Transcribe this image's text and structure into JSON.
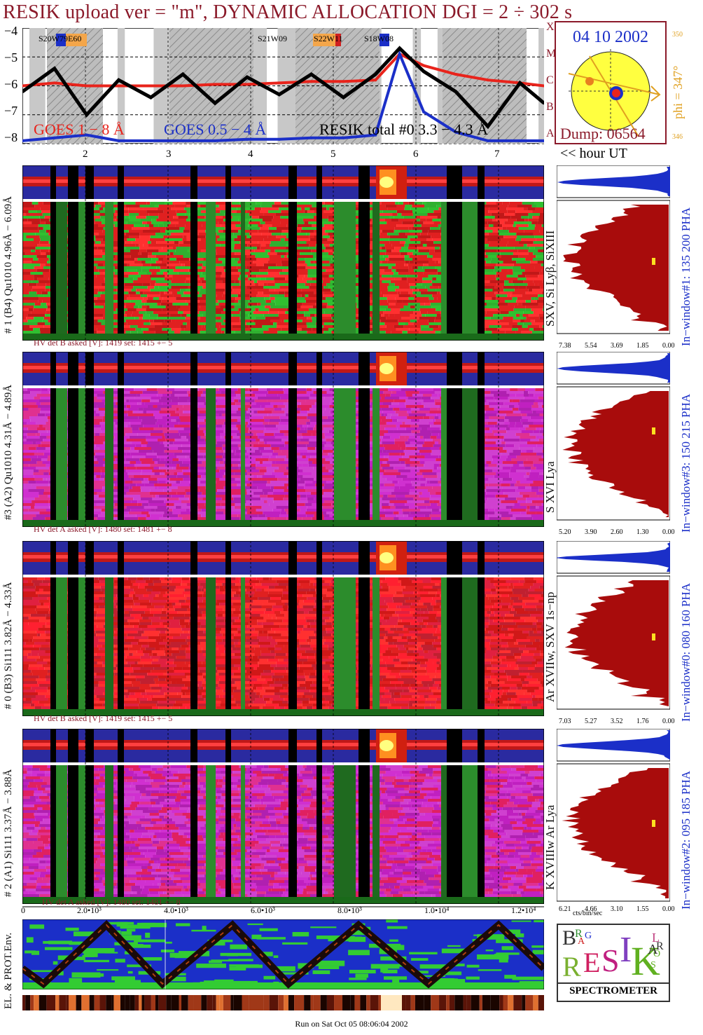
{
  "title": "RESIK upload ver = \"m\", DYNAMIC ALLOCATION  DGI =   2 ÷ 302 s",
  "goes_panel": {
    "y_ticks": [
      "−4",
      "−5",
      "−6",
      "−7",
      "−8"
    ],
    "class_letters": [
      "X",
      "M",
      "C",
      "B",
      "A"
    ],
    "regions": [
      "S20W79E60",
      "S21W09",
      "S22W11",
      "S18W08"
    ],
    "legend_goes_long": "GOES 1 − 8 Å",
    "legend_goes_short": "GOES 0.5 − 4 Å",
    "legend_resik": "RESIK total #0  3.3 − 4.3 Å"
  },
  "sun_panel": {
    "date": "04 10 2002",
    "phi": "phi = 347°",
    "phi_top": "350",
    "phi_bottom": "346",
    "dump": "Dump: 06564"
  },
  "hour_axis": {
    "ticks": [
      "2",
      "3",
      "4",
      "5",
      "6",
      "7"
    ],
    "unit_label": "<< hour UT"
  },
  "channels": [
    {
      "left_label": "# 1 (B4) Qu1010 4.96Å − 6.09Å",
      "right_label": "SXV, Si Lyβ, SiXIII",
      "window_label": "In−window#1:  135 200 PHA",
      "hv": "HV det B asked [V]:  1419  set:  1415  +−   5",
      "hist_ticks": [
        "7.38",
        "5.54",
        "3.69",
        "1.85",
        "0.00"
      ]
    },
    {
      "left_label": "#3 (A2) Qu1010  4.31Å − 4.89Å",
      "right_label": "S XVI Lya",
      "window_label": "In−window#3:  150 215 PHA",
      "hv": "HV det A asked [V]:  1480  set:  1481  +−   8",
      "hist_ticks": [
        "5.20",
        "3.90",
        "2.60",
        "1.30",
        "0.00"
      ]
    },
    {
      "left_label": "# 0 (B3) Si111  3.82Å − 4.33Å",
      "right_label": "Ar XVIIw,  SXV 1s−np",
      "window_label": "In−window#0:  080 160 PHA",
      "hv": "HV det B asked [V]:  1419  set:  1415  +−   5",
      "hist_ticks": [
        "7.03",
        "5.27",
        "3.52",
        "1.76",
        "0.00"
      ]
    },
    {
      "left_label": "# 2 (A1) Si111  3.37Å − 3.88Å",
      "right_label": "K XVIIIw  Ar Lya",
      "window_label": "In−window#2:  095 185 PHA",
      "hv": "HV det A asked [V]:  1480  set:  1481  +−   8",
      "hist_ticks": [
        "6.21",
        "4.66",
        "3.10",
        "1.55",
        "0.00"
      ]
    }
  ],
  "hist_unit": "cts/bin/sec",
  "x_axis_counts": [
    "0",
    "2.0•10³",
    "4.0•10³",
    "6.0•10³",
    "8.0•10³",
    "1.0•10⁴",
    "1.2•10⁴"
  ],
  "env_label": "EL. & PROT.Env.",
  "logo": {
    "letters": [
      "B",
      "R",
      "A",
      "G",
      "R",
      "E",
      "S",
      "I",
      "K",
      "S",
      "O",
      "L",
      "A",
      "R"
    ],
    "caption": "SPECTROMETER"
  },
  "footer": "Run on Sat Oct 05 08:06:04 2002",
  "chart_data": {
    "type": "line",
    "title": "RESIK upload ver = \"m\", DYNAMIC ALLOCATION  DGI =   2 ÷ 302 s",
    "xlabel": "<< hour UT",
    "ylabel": "",
    "x": [
      1.2,
      1.6,
      2.0,
      2.4,
      2.8,
      3.2,
      3.6,
      4.0,
      4.4,
      4.8,
      5.2,
      5.6,
      5.9,
      6.2,
      6.6,
      7.0,
      7.4,
      7.7
    ],
    "xlim": [
      1.2,
      7.7
    ],
    "ylim": [
      -8,
      -4
    ],
    "series": [
      {
        "name": "GOES 1 − 8 Å",
        "color": "#e8231b",
        "values": [
          -6.0,
          -5.9,
          -6.0,
          -6.0,
          -6.0,
          -6.0,
          -5.95,
          -5.95,
          -5.9,
          -5.85,
          -5.85,
          -5.8,
          -4.9,
          -5.3,
          -5.6,
          -5.8,
          -5.9,
          -6.0
        ]
      },
      {
        "name": "GOES 0.5 − 4 Å",
        "color": "#1b2fc8",
        "values": [
          -7.9,
          -7.8,
          -7.7,
          -7.9,
          -7.9,
          -7.9,
          -7.9,
          -7.85,
          -7.85,
          -7.8,
          -7.8,
          -7.7,
          -4.9,
          -6.9,
          -7.6,
          -7.9,
          -7.9,
          -7.9
        ]
      },
      {
        "name": "RESIK total #0  3.3 − 4.3 Å",
        "color": "#000000",
        "values": [
          -6.2,
          -5.4,
          -7.0,
          -5.8,
          -6.4,
          -5.6,
          -6.6,
          -5.7,
          -6.3,
          -5.6,
          -6.4,
          -5.6,
          -4.7,
          -5.5,
          -6.2,
          -7.4,
          -5.9,
          -6.6
        ]
      }
    ]
  }
}
